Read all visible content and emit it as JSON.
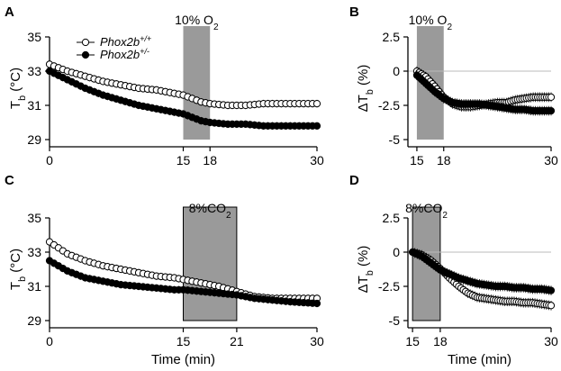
{
  "chart_data": [
    {
      "id": "A",
      "type": "line",
      "panel_label": "A",
      "ylabel": "T_b (°C)",
      "xlabel": "",
      "xlim": [
        0,
        30
      ],
      "ylim": [
        29,
        35
      ],
      "xticks": [
        0,
        15,
        18,
        30
      ],
      "yticks": [
        29,
        31,
        33,
        35
      ],
      "shade": {
        "from": 15,
        "to": 18,
        "label": "10% O₂"
      },
      "legend": [
        "Phox2b+/+",
        "Phox2b+/-"
      ],
      "series": [
        {
          "name": "Phox2b+/+",
          "marker": "open",
          "x": [
            0,
            2,
            4,
            6,
            8,
            10,
            12,
            14,
            15,
            16,
            17,
            18,
            20,
            22,
            24,
            26,
            28,
            30
          ],
          "y": [
            33.4,
            33.0,
            32.7,
            32.4,
            32.2,
            32.0,
            31.9,
            31.7,
            31.6,
            31.4,
            31.2,
            31.1,
            31.0,
            31.0,
            31.1,
            31.1,
            31.1,
            31.1
          ]
        },
        {
          "name": "Phox2b+/-",
          "marker": "filled",
          "x": [
            0,
            2,
            4,
            6,
            8,
            10,
            12,
            14,
            15,
            16,
            17,
            18,
            20,
            22,
            24,
            26,
            28,
            30
          ],
          "y": [
            33.0,
            32.5,
            32.0,
            31.6,
            31.3,
            31.0,
            30.8,
            30.6,
            30.5,
            30.3,
            30.1,
            30.0,
            29.9,
            29.9,
            29.8,
            29.8,
            29.8,
            29.8
          ]
        }
      ]
    },
    {
      "id": "B",
      "type": "line",
      "panel_label": "B",
      "ylabel": "ΔT_b (%)",
      "xlabel": "",
      "xlim": [
        14,
        30
      ],
      "ylim": [
        -5,
        2.5
      ],
      "xticks": [
        15,
        18,
        30
      ],
      "yticks": [
        2.5,
        0,
        -2.5,
        -5
      ],
      "shade": {
        "from": 15,
        "to": 18,
        "label": "10% O₂"
      },
      "series": [
        {
          "name": "Phox2b+/+",
          "marker": "open",
          "x": [
            15,
            16,
            17,
            18,
            19,
            20,
            21,
            22,
            23,
            24,
            25,
            26,
            27,
            28,
            29,
            30
          ],
          "y": [
            0,
            -0.4,
            -1.1,
            -1.9,
            -2.4,
            -2.6,
            -2.6,
            -2.5,
            -2.4,
            -2.3,
            -2.3,
            -2.1,
            -2.0,
            -1.9,
            -1.9,
            -1.9
          ]
        },
        {
          "name": "Phox2b+/-",
          "marker": "filled",
          "x": [
            15,
            16,
            17,
            18,
            19,
            20,
            21,
            22,
            23,
            24,
            25,
            26,
            27,
            28,
            29,
            30
          ],
          "y": [
            -0.3,
            -0.9,
            -1.5,
            -2.0,
            -2.3,
            -2.4,
            -2.4,
            -2.4,
            -2.5,
            -2.6,
            -2.7,
            -2.8,
            -2.8,
            -2.9,
            -2.9,
            -2.9
          ]
        }
      ]
    },
    {
      "id": "C",
      "type": "line",
      "panel_label": "C",
      "ylabel": "T_b (°C)",
      "xlabel": "Time (min)",
      "xlim": [
        0,
        30
      ],
      "ylim": [
        29,
        35
      ],
      "xticks": [
        0,
        15,
        21,
        30
      ],
      "yticks": [
        29,
        31,
        33,
        35
      ],
      "shade": {
        "from": 15,
        "to": 21,
        "label": "8%CO₂"
      },
      "series": [
        {
          "name": "Phox2b+/+",
          "marker": "open",
          "x": [
            0,
            2,
            4,
            6,
            8,
            10,
            12,
            14,
            15,
            17,
            19,
            21,
            23,
            25,
            27,
            30
          ],
          "y": [
            33.6,
            32.9,
            32.5,
            32.2,
            32.0,
            31.8,
            31.6,
            31.5,
            31.4,
            31.2,
            31.0,
            30.7,
            30.4,
            30.3,
            30.3,
            30.3
          ]
        },
        {
          "name": "Phox2b+/-",
          "marker": "filled",
          "x": [
            0,
            2,
            4,
            6,
            8,
            10,
            12,
            14,
            15,
            17,
            19,
            21,
            23,
            25,
            27,
            30
          ],
          "y": [
            32.5,
            31.9,
            31.5,
            31.3,
            31.1,
            31.0,
            30.9,
            30.8,
            30.8,
            30.7,
            30.6,
            30.5,
            30.3,
            30.2,
            30.1,
            30.0
          ]
        }
      ]
    },
    {
      "id": "D",
      "type": "line",
      "panel_label": "D",
      "ylabel": "ΔT_b (%)",
      "xlabel": "Time (min)",
      "xlim": [
        14.5,
        30
      ],
      "ylim": [
        -5,
        2.5
      ],
      "xticks": [
        15,
        18,
        30
      ],
      "yticks": [
        2.5,
        0,
        -2.5,
        -5
      ],
      "shade": {
        "from": 15,
        "to": 18,
        "label": "8%CO₂"
      },
      "series": [
        {
          "name": "Phox2b+/+",
          "marker": "open",
          "x": [
            15,
            16,
            17,
            18,
            19,
            20,
            21,
            22,
            23,
            24,
            25,
            26,
            27,
            28,
            29,
            30
          ],
          "y": [
            0,
            -0.2,
            -0.6,
            -1.2,
            -1.9,
            -2.5,
            -3.0,
            -3.3,
            -3.4,
            -3.5,
            -3.6,
            -3.6,
            -3.7,
            -3.7,
            -3.8,
            -3.9
          ]
        },
        {
          "name": "Phox2b+/-",
          "marker": "filled",
          "x": [
            15,
            16,
            17,
            18,
            19,
            20,
            21,
            22,
            23,
            24,
            25,
            26,
            27,
            28,
            29,
            30
          ],
          "y": [
            0,
            -0.3,
            -0.8,
            -1.3,
            -1.6,
            -1.9,
            -2.1,
            -2.3,
            -2.4,
            -2.5,
            -2.5,
            -2.6,
            -2.6,
            -2.7,
            -2.7,
            -2.8
          ]
        }
      ]
    }
  ]
}
